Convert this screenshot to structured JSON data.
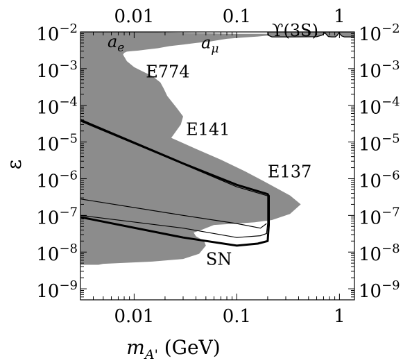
{
  "chart_data": {
    "type": "area",
    "title": "",
    "xlabel": "m_A' (GeV)",
    "xlabel_parts": {
      "symbol": "m",
      "subscript": "A'",
      "unit": " (GeV)"
    },
    "ylabel": "ε",
    "xscale": "log",
    "yscale": "log",
    "xlim": [
      0.003,
      1.4
    ],
    "ylim": [
      5e-10,
      0.01
    ],
    "x_ticks_bottom": [
      {
        "value": 0.01,
        "label": "0.01"
      },
      {
        "value": 0.1,
        "label": "0.1"
      },
      {
        "value": 1,
        "label": "1"
      }
    ],
    "x_ticks_top": [
      {
        "value": 0.01,
        "label": "0.01"
      },
      {
        "value": 0.1,
        "label": "0.1"
      },
      {
        "value": 1,
        "label": "1"
      }
    ],
    "y_ticks": [
      {
        "value": 0.01,
        "base": "10",
        "exp": "−2"
      },
      {
        "value": 0.001,
        "base": "10",
        "exp": "−3"
      },
      {
        "value": 0.0001,
        "base": "10",
        "exp": "−4"
      },
      {
        "value": 1e-05,
        "base": "10",
        "exp": "−5"
      },
      {
        "value": 1e-06,
        "base": "10",
        "exp": "−6"
      },
      {
        "value": 1e-07,
        "base": "10",
        "exp": "−7"
      },
      {
        "value": 1e-08,
        "base": "10",
        "exp": "−8"
      },
      {
        "value": 1e-09,
        "base": "10",
        "exp": "−9"
      }
    ],
    "fill_color": "#8c8c8c",
    "line_color": "#000000",
    "excluded_region": {
      "name": "beam dump and anomaly exclusions",
      "boundary": [
        [
          0.003,
          0.01
        ],
        [
          0.011,
          0.01
        ],
        [
          0.03,
          0.0095
        ],
        [
          0.1,
          0.0089
        ],
        [
          0.3,
          0.0089
        ],
        [
          0.16,
          0.0075
        ],
        [
          0.11,
          0.007
        ],
        [
          0.08,
          0.0065
        ],
        [
          0.055,
          0.0055
        ],
        [
          0.04,
          0.005
        ],
        [
          0.03,
          0.0045
        ],
        [
          0.022,
          0.0041
        ],
        [
          0.017,
          0.0036
        ],
        [
          0.013,
          0.0033
        ],
        [
          0.011,
          0.0031
        ],
        [
          0.0095,
          0.003
        ],
        [
          0.0085,
          0.0029
        ],
        [
          0.008,
          0.0027
        ],
        [
          0.0078,
          0.0024
        ],
        [
          0.0085,
          0.0016
        ],
        [
          0.01,
          0.0011
        ],
        [
          0.012,
          0.00085
        ],
        [
          0.015,
          0.00063
        ],
        [
          0.018,
          0.00042
        ],
        [
          0.0195,
          0.00028
        ],
        [
          0.021,
          0.00018
        ],
        [
          0.026,
          8.5e-05
        ],
        [
          0.03,
          5e-05
        ],
        [
          0.0285,
          3e-05
        ],
        [
          0.025,
          1.8e-05
        ],
        [
          0.023,
          1.3e-05
        ],
        [
          0.04,
          6.5e-06
        ],
        [
          0.07,
          3.3e-06
        ],
        [
          0.12,
          1.6e-06
        ],
        [
          0.2,
          7.5e-07
        ],
        [
          0.33,
          3.5e-07
        ],
        [
          0.42,
          2e-07
        ],
        [
          0.33,
          1.1e-07
        ],
        [
          0.22,
          7.5e-08
        ],
        [
          0.15,
          6.5e-08
        ],
        [
          0.1,
          6e-08
        ],
        [
          0.06,
          5.5e-08
        ],
        [
          0.045,
          4e-08
        ],
        [
          0.038,
          3.4e-08
        ],
        [
          0.04,
          2.7e-08
        ],
        [
          0.048,
          2e-08
        ],
        [
          0.05,
          1.5e-08
        ],
        [
          0.043,
          9e-09
        ],
        [
          0.03,
          6.5e-09
        ],
        [
          0.015,
          5.5e-09
        ],
        [
          0.007,
          5e-09
        ],
        [
          0.005,
          4.8e-09
        ],
        [
          0.0045,
          4.5e-09
        ],
        [
          0.003,
          4.5e-09
        ]
      ]
    },
    "upsilon_region": {
      "boundary": [
        [
          0.2,
          0.01
        ],
        [
          1.4,
          0.01
        ],
        [
          1.4,
          0.0073
        ],
        [
          1.12,
          0.0073
        ],
        [
          1.05,
          0.0078
        ],
        [
          0.99,
          0.0095
        ],
        [
          0.95,
          0.008
        ],
        [
          0.91,
          0.0073
        ],
        [
          0.84,
          0.0073
        ],
        [
          0.78,
          0.0075
        ],
        [
          0.72,
          0.0095
        ],
        [
          0.68,
          0.0082
        ],
        [
          0.6,
          0.0074
        ],
        [
          0.35,
          0.0073
        ],
        [
          0.22,
          0.0073
        ],
        [
          0.205,
          0.008
        ],
        [
          0.2,
          0.01
        ]
      ]
    },
    "curves": [
      {
        "name": "outer-upper",
        "stroke_width": 1.2,
        "points": [
          [
            0.003,
            3.7e-05
          ],
          [
            0.03,
            2.5e-06
          ],
          [
            0.1,
            6e-07
          ],
          [
            0.2,
            3.4e-07
          ],
          [
            0.2,
            6e-08
          ],
          [
            0.195,
            3.2e-08
          ],
          [
            0.17,
            2.8e-08
          ],
          [
            0.1,
            2.5e-08
          ],
          [
            0.03,
            4.5e-08
          ],
          [
            0.003,
            1e-07
          ]
        ]
      },
      {
        "name": "outer-lower",
        "stroke_width": 3,
        "points": [
          [
            0.003,
            4e-05
          ],
          [
            0.03,
            2.6e-06
          ],
          [
            0.1,
            6.8e-07
          ],
          [
            0.2,
            3.8e-07
          ],
          [
            0.205,
            3.4e-07
          ],
          [
            0.205,
            5.5e-08
          ],
          [
            0.2,
            2e-08
          ],
          [
            0.16,
            1.7e-08
          ],
          [
            0.1,
            1.5e-08
          ],
          [
            0.03,
            2.5e-08
          ],
          [
            0.003,
            9e-08
          ]
        ]
      },
      {
        "name": "inner",
        "stroke_width": 1.2,
        "points": [
          [
            0.003,
            2.8e-07
          ],
          [
            0.03,
            1e-07
          ],
          [
            0.1,
            6e-08
          ],
          [
            0.17,
            4.5e-08
          ],
          [
            0.195,
            6e-08
          ]
        ]
      }
    ],
    "annotations": [
      {
        "text_main": "a",
        "text_sub": "e",
        "italic": true,
        "x": 0.0055,
        "y": 0.0038
      },
      {
        "text_main": "a",
        "text_sub": "μ",
        "italic": true,
        "x": 0.045,
        "y": 0.0036
      },
      {
        "text_main": "E774",
        "text_sub": "",
        "italic": false,
        "x": 0.013,
        "y": 0.00058
      },
      {
        "text_main": "E141",
        "text_sub": "",
        "italic": false,
        "x": 0.032,
        "y": 1.55e-05
      },
      {
        "text_main": "E137",
        "text_sub": "",
        "italic": false,
        "x": 0.2,
        "y": 1.1e-06
      },
      {
        "text_main": "ϒ(3S)",
        "text_sub": "",
        "italic": false,
        "x": 0.22,
        "y": 0.0077
      },
      {
        "text_main": "SN",
        "text_sub": "",
        "italic": false,
        "x": 0.05,
        "y": 4.5e-09
      }
    ]
  }
}
